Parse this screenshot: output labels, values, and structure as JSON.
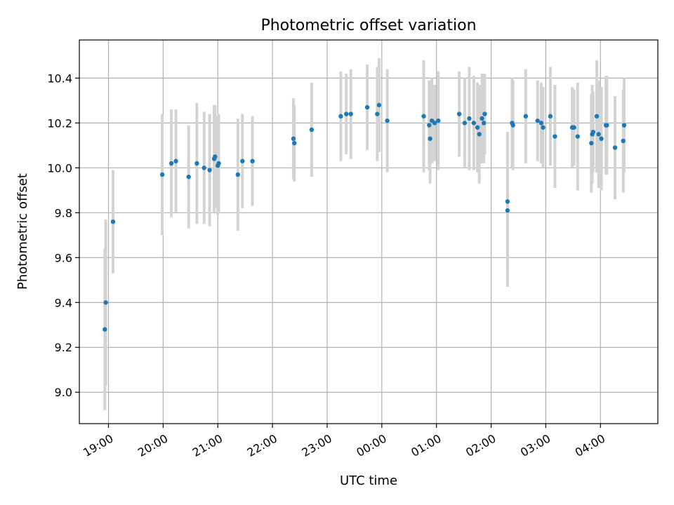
{
  "chart_data": {
    "type": "scatter",
    "title": "Photometric offset variation",
    "xlabel": "UTC time",
    "ylabel": "Photometric offset",
    "grid": true,
    "colors": {
      "point": "#1f77b4",
      "errorbar": "#d3d3d3",
      "grid": "#b0b0b0"
    },
    "x_ticks": [
      "19:00",
      "20:00",
      "21:00",
      "22:00",
      "23:00",
      "00:00",
      "01:00",
      "02:00",
      "03:00",
      "04:00"
    ],
    "y_ticks": [
      "9.0",
      "9.2",
      "9.4",
      "9.6",
      "9.8",
      "10.0",
      "10.2",
      "10.4"
    ],
    "xlim": [
      "18:28",
      "05:03"
    ],
    "ylim": [
      8.86,
      10.57
    ],
    "x": [
      "18:56",
      "18:57",
      "19:05",
      "19:59",
      "20:09",
      "20:14",
      "20:28",
      "20:37",
      "20:45",
      "20:51",
      "20:56",
      "20:57",
      "21:00",
      "21:01",
      "21:22",
      "21:27",
      "21:38",
      "22:23",
      "22:24",
      "22:43",
      "23:15",
      "23:21",
      "23:26",
      "23:44",
      "23:55",
      "23:57",
      "00:06",
      "00:46",
      "00:52",
      "00:53",
      "00:55",
      "00:58",
      "01:02",
      "01:25",
      "01:31",
      "01:36",
      "01:41",
      "01:45",
      "01:47",
      "01:50",
      "01:52",
      "01:53",
      "02:18",
      "02:18",
      "02:23",
      "02:24",
      "02:38",
      "02:51",
      "02:55",
      "02:57",
      "03:05",
      "03:10",
      "03:29",
      "03:31",
      "03:35",
      "03:50",
      "03:51",
      "03:52",
      "03:56",
      "03:58",
      "04:01",
      "04:06",
      "04:07",
      "04:16",
      "04:25",
      "04:26"
    ],
    "y": [
      9.28,
      9.4,
      9.76,
      9.97,
      10.02,
      10.03,
      9.96,
      10.02,
      10.0,
      9.99,
      10.04,
      10.05,
      10.01,
      10.02,
      9.97,
      10.03,
      10.03,
      10.13,
      10.11,
      10.17,
      10.23,
      10.24,
      10.24,
      10.27,
      10.24,
      10.28,
      10.21,
      10.23,
      10.19,
      10.13,
      10.21,
      10.2,
      10.21,
      10.24,
      10.2,
      10.22,
      10.2,
      10.18,
      10.15,
      10.22,
      10.2,
      10.24,
      9.85,
      9.81,
      10.2,
      10.19,
      10.23,
      10.21,
      10.2,
      10.18,
      10.23,
      10.14,
      10.18,
      10.18,
      10.14,
      10.11,
      10.15,
      10.16,
      10.23,
      10.15,
      10.13,
      10.19,
      10.19,
      10.09,
      10.12,
      10.19
    ],
    "yerr": [
      0.36,
      0.37,
      0.23,
      0.27,
      0.24,
      0.23,
      0.23,
      0.27,
      0.25,
      0.25,
      0.24,
      0.23,
      0.22,
      0.22,
      0.25,
      0.21,
      0.2,
      0.18,
      0.17,
      0.21,
      0.2,
      0.18,
      0.2,
      0.19,
      0.21,
      0.21,
      0.23,
      0.25,
      0.2,
      0.2,
      0.19,
      0.17,
      0.22,
      0.19,
      0.2,
      0.23,
      0.21,
      0.2,
      0.22,
      0.2,
      0.18,
      0.18,
      0.31,
      0.34,
      0.2,
      0.2,
      0.21,
      0.18,
      0.18,
      0.18,
      0.22,
      0.23,
      0.18,
      0.17,
      0.24,
      0.22,
      0.22,
      0.18,
      0.25,
      0.24,
      0.23,
      0.22,
      0.22,
      0.23,
      0.23,
      0.21
    ]
  }
}
